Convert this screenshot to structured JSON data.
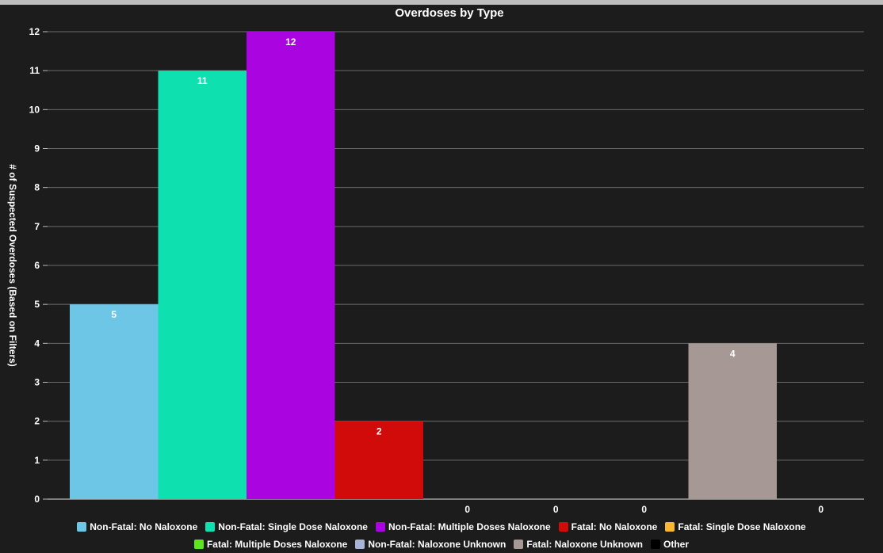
{
  "chart_data": {
    "type": "bar",
    "title": "Overdoses by Type",
    "ylabel": "# of Suspected Overdoses (Based on Filters)",
    "xlabel": "",
    "ylim": [
      0,
      12
    ],
    "yticks": [
      0,
      1,
      2,
      3,
      4,
      5,
      6,
      7,
      8,
      9,
      10,
      11,
      12
    ],
    "grid": true,
    "legend_position": "bottom",
    "series": [
      {
        "name": "Non-Fatal: No Naloxone",
        "value": 5,
        "color": "#6ec6e6"
      },
      {
        "name": "Non-Fatal: Single Dose Naloxone",
        "value": 11,
        "color": "#0fe0b0"
      },
      {
        "name": "Non-Fatal: Multiple Doses Naloxone",
        "value": 12,
        "color": "#aa05e0"
      },
      {
        "name": "Fatal: No Naloxone",
        "value": 2,
        "color": "#d10a0a"
      },
      {
        "name": "Fatal: Single Dose Naloxone",
        "value": 0,
        "color": "#f7b731"
      },
      {
        "name": "Fatal: Multiple Doses Naloxone",
        "value": 0,
        "color": "#5de61e"
      },
      {
        "name": "Non-Fatal: Naloxone Unknown",
        "value": 0,
        "color": "#a8b4d6"
      },
      {
        "name": "Fatal: Naloxone Unknown",
        "value": 4,
        "color": "#a69894"
      },
      {
        "name": "Other",
        "value": 0,
        "color": "#000000"
      }
    ]
  }
}
